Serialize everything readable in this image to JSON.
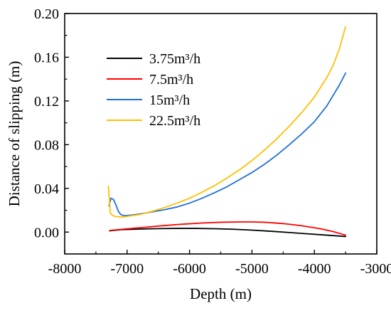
{
  "chart_data": {
    "type": "line",
    "xlabel": "Depth (m)",
    "ylabel": "Distance of slipping (m)",
    "xlim": [
      -8000,
      -3000
    ],
    "ylim": [
      -0.02,
      0.2
    ],
    "xticks": [
      -8000,
      -7000,
      -6000,
      -5000,
      -4000,
      -3000
    ],
    "yticks": [
      0.0,
      0.04,
      0.08,
      0.12,
      0.16,
      0.2
    ],
    "xtick_labels": [
      "-8000",
      "-7000",
      "-6000",
      "-5000",
      "-4000",
      "-3000"
    ],
    "ytick_labels": [
      "0.00",
      "0.04",
      "0.08",
      "0.12",
      "0.16",
      "0.20"
    ],
    "grid": false,
    "legend_position": "upper-left",
    "series": [
      {
        "name": "3.75m³/h",
        "color": "#000000",
        "x": [
          -7280,
          -7100,
          -6800,
          -6500,
          -6200,
          -5900,
          -5600,
          -5300,
          -5000,
          -4700,
          -4400,
          -4100,
          -3800,
          -3500
        ],
        "y": [
          0.0012,
          0.0022,
          0.0028,
          0.0032,
          0.0034,
          0.0034,
          0.0031,
          0.0026,
          0.0018,
          0.0008,
          -0.0004,
          -0.0016,
          -0.0028,
          -0.004
        ]
      },
      {
        "name": "7.5m³/h",
        "color": "#ff0000",
        "x": [
          -7280,
          -7000,
          -6700,
          -6400,
          -6100,
          -5800,
          -5500,
          -5200,
          -5000,
          -4800,
          -4500,
          -4200,
          -3900,
          -3700,
          -3500
        ],
        "y": [
          0.0015,
          0.003,
          0.0045,
          0.006,
          0.0073,
          0.0083,
          0.009,
          0.0093,
          0.0093,
          0.009,
          0.0078,
          0.0058,
          0.003,
          0.0005,
          -0.0028
        ]
      },
      {
        "name": "15m³/h",
        "color": "#1f6fd6",
        "x": [
          -7290,
          -7260,
          -7220,
          -7180,
          -7140,
          -7100,
          -7040,
          -6950,
          -6800,
          -6600,
          -6400,
          -6200,
          -6000,
          -5800,
          -5600,
          -5400,
          -5200,
          -5000,
          -4800,
          -4600,
          -4400,
          -4200,
          -4000,
          -3800,
          -3600,
          -3500
        ],
        "y": [
          0.024,
          0.031,
          0.03,
          0.025,
          0.019,
          0.016,
          0.015,
          0.0155,
          0.0165,
          0.0185,
          0.0205,
          0.023,
          0.0265,
          0.031,
          0.036,
          0.0415,
          0.048,
          0.0545,
          0.062,
          0.0705,
          0.08,
          0.09,
          0.101,
          0.1155,
          0.1345,
          0.1455
        ]
      },
      {
        "name": "22.5m³/h",
        "color": "#ffbf00",
        "x": [
          -7300,
          -7270,
          -7240,
          -7200,
          -7150,
          -7100,
          -7040,
          -6950,
          -6800,
          -6600,
          -6400,
          -6200,
          -6000,
          -5800,
          -5600,
          -5400,
          -5200,
          -5000,
          -4800,
          -4600,
          -4400,
          -4200,
          -4000,
          -3800,
          -3700,
          -3600,
          -3500
        ],
        "y": [
          0.042,
          0.018,
          0.0155,
          0.0145,
          0.014,
          0.0138,
          0.014,
          0.0148,
          0.016,
          0.019,
          0.0225,
          0.0265,
          0.031,
          0.0365,
          0.0425,
          0.0495,
          0.057,
          0.0655,
          0.075,
          0.0855,
          0.097,
          0.1095,
          0.1235,
          0.1415,
          0.1525,
          0.1675,
          0.188
        ]
      }
    ]
  }
}
